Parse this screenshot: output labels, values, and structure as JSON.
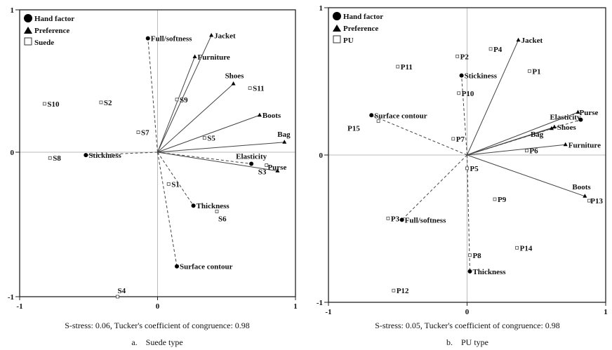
{
  "chart_data": [
    {
      "type": "scatter",
      "title": "Suede type",
      "caption_prefix": "a.",
      "stats": "S-stress: 0.06, Tucker's coefficient of congruence: 0.98",
      "xlim": [
        -1,
        1
      ],
      "ylim": [
        -1,
        1
      ],
      "xticks": [
        "-1",
        "0",
        "1"
      ],
      "yticks": [
        "-1",
        "0",
        "1"
      ],
      "legend": {
        "position": "top-left",
        "entries": [
          "Hand factor",
          "Preference",
          "Suede"
        ]
      },
      "hand_factors": [
        {
          "name": "Full/softness",
          "x": -0.07,
          "y": 0.8
        },
        {
          "name": "Stickiness",
          "x": -0.52,
          "y": -0.02
        },
        {
          "name": "Elasticity",
          "x": 0.68,
          "y": -0.08
        },
        {
          "name": "Thickness",
          "x": 0.26,
          "y": -0.37
        },
        {
          "name": "Surface contour",
          "x": 0.14,
          "y": -0.79
        }
      ],
      "preferences": [
        {
          "name": "Jacket",
          "x": 0.39,
          "y": 0.82
        },
        {
          "name": "Furniture",
          "x": 0.27,
          "y": 0.67
        },
        {
          "name": "Shoes",
          "x": 0.55,
          "y": 0.48
        },
        {
          "name": "Boots",
          "x": 0.74,
          "y": 0.26
        },
        {
          "name": "Bag",
          "x": 0.92,
          "y": 0.07
        },
        {
          "name": "Purse",
          "x": 0.87,
          "y": -0.13
        }
      ],
      "samples": [
        {
          "name": "S1",
          "x": 0.08,
          "y": -0.22
        },
        {
          "name": "S2",
          "x": -0.41,
          "y": 0.35
        },
        {
          "name": "S3",
          "x": 0.79,
          "y": -0.09
        },
        {
          "name": "S4",
          "x": -0.29,
          "y": -1.0
        },
        {
          "name": "S5",
          "x": 0.34,
          "y": 0.1
        },
        {
          "name": "S6",
          "x": 0.43,
          "y": -0.41
        },
        {
          "name": "S7",
          "x": -0.14,
          "y": 0.14
        },
        {
          "name": "S8",
          "x": -0.78,
          "y": -0.04
        },
        {
          "name": "S9",
          "x": 0.14,
          "y": 0.37
        },
        {
          "name": "S10",
          "x": -0.82,
          "y": 0.34
        },
        {
          "name": "S11",
          "x": 0.67,
          "y": 0.45
        }
      ]
    },
    {
      "type": "scatter",
      "title": "PU type",
      "caption_prefix": "b.",
      "stats": "S-stress: 0.05, Tucker's coefficient of congruence: 0.98",
      "xlim": [
        -1,
        1
      ],
      "ylim": [
        -1,
        1
      ],
      "xticks": [
        "-1",
        "0",
        "1"
      ],
      "yticks": [
        "-1",
        "0",
        "1"
      ],
      "legend": {
        "position": "top-left",
        "entries": [
          "Hand factor",
          "Preference",
          "PU"
        ]
      },
      "hand_factors": [
        {
          "name": "Stickiness",
          "x": -0.04,
          "y": 0.54
        },
        {
          "name": "Surface contour",
          "x": -0.69,
          "y": 0.27
        },
        {
          "name": "Elasticity",
          "x": 0.82,
          "y": 0.24
        },
        {
          "name": "Full/softness",
          "x": -0.47,
          "y": -0.44
        },
        {
          "name": "Thickness",
          "x": 0.02,
          "y": -0.79
        }
      ],
      "preferences": [
        {
          "name": "Jacket",
          "x": 0.37,
          "y": 0.78
        },
        {
          "name": "Purse",
          "x": 0.8,
          "y": 0.29
        },
        {
          "name": "Shoes",
          "x": 0.63,
          "y": 0.19
        },
        {
          "name": "Bag",
          "x": 0.61,
          "y": 0.18
        },
        {
          "name": "Furniture",
          "x": 0.71,
          "y": 0.07
        },
        {
          "name": "Boots",
          "x": 0.85,
          "y": -0.28
        }
      ],
      "samples": [
        {
          "name": "P1",
          "x": 0.45,
          "y": 0.57
        },
        {
          "name": "P2",
          "x": -0.07,
          "y": 0.67
        },
        {
          "name": "P3",
          "x": -0.57,
          "y": -0.43
        },
        {
          "name": "P4",
          "x": 0.17,
          "y": 0.72
        },
        {
          "name": "P5",
          "x": 0.0,
          "y": -0.09
        },
        {
          "name": "P6",
          "x": 0.43,
          "y": 0.03
        },
        {
          "name": "P7",
          "x": -0.1,
          "y": 0.11
        },
        {
          "name": "P8",
          "x": 0.02,
          "y": -0.68
        },
        {
          "name": "P9",
          "x": 0.2,
          "y": -0.3
        },
        {
          "name": "P10",
          "x": -0.06,
          "y": 0.42
        },
        {
          "name": "P11",
          "x": -0.5,
          "y": 0.6
        },
        {
          "name": "P12",
          "x": -0.53,
          "y": -0.92
        },
        {
          "name": "P13",
          "x": 0.88,
          "y": -0.31
        },
        {
          "name": "P14",
          "x": 0.36,
          "y": -0.63
        },
        {
          "name": "P15",
          "x": -0.64,
          "y": 0.23
        }
      ]
    }
  ]
}
